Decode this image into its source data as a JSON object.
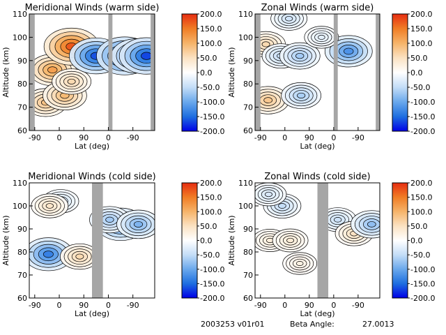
{
  "colors": {
    "scale": [
      "#0000e6",
      "#1e6fe0",
      "#6aa8ec",
      "#c4ddf7",
      "#ffffff",
      "#fbe2c2",
      "#f6b46a",
      "#f07d25",
      "#e62d10"
    ],
    "shade": "#a6a6a6",
    "line": "#000000"
  },
  "footer": {
    "run_id": "2003253 v01r01",
    "beta_label": "Beta Angle:",
    "beta_value": "27.0013"
  },
  "chart_data": [
    {
      "type": "heatmap",
      "title": "Meridional Winds (warm side)",
      "xlabel": "Lat (deg)",
      "ylabel": "Altitude (km)",
      "xticks": [
        "-90",
        "0",
        "90",
        "0",
        "-90"
      ],
      "yticks": [
        60,
        70,
        80,
        90,
        100,
        110
      ],
      "ylim": [
        60,
        110
      ],
      "colorbar": {
        "ticks": [
          "200.0",
          "150.0",
          "100.0",
          "50.0",
          "0.0",
          "-50.0",
          "-100.0",
          "-150.0",
          "-200.0"
        ],
        "range": [
          -200,
          200
        ]
      },
      "shaded_ranges": [
        [
          -110,
          -90
        ],
        [
          180,
          195
        ],
        [
          335,
          350
        ]
      ],
      "cells": [
        {
          "lat": -25,
          "alt": 86,
          "val": 120
        },
        {
          "lat": 45,
          "alt": 96,
          "val": 175
        },
        {
          "lat": -50,
          "alt": 72,
          "val": 85
        },
        {
          "lat": 20,
          "alt": 75,
          "val": 95
        },
        {
          "lat": 45,
          "alt": 81,
          "val": 60
        },
        {
          "lat": 135,
          "alt": 92,
          "val": -165
        },
        {
          "lat": 240,
          "alt": 92,
          "val": -185
        },
        {
          "lat": 285,
          "alt": 92,
          "val": -150
        },
        {
          "lat": 320,
          "alt": 92,
          "val": -170
        }
      ]
    },
    {
      "type": "heatmap",
      "title": "Zonal Winds (warm side)",
      "xlabel": "Lat (deg)",
      "ylabel": "Altitude (km)",
      "xticks": [
        "-90",
        "0",
        "90",
        "0",
        "-90"
      ],
      "yticks": [
        60,
        70,
        80,
        90,
        100,
        110
      ],
      "ylim": [
        60,
        110
      ],
      "colorbar": {
        "ticks": [
          "200.0",
          "150.0",
          "100.0",
          "50.0",
          "0.0",
          "-50.0",
          "-100.0",
          "-150.0",
          "-200.0"
        ],
        "range": [
          -200,
          200
        ]
      },
      "shaded_ranges": [
        [
          -110,
          -90
        ],
        [
          180,
          195
        ],
        [
          335,
          350
        ]
      ],
      "cells": [
        {
          "lat": -70,
          "alt": 97,
          "val": 60
        },
        {
          "lat": -62,
          "alt": 73,
          "val": 80
        },
        {
          "lat": -15,
          "alt": 92,
          "val": -50
        },
        {
          "lat": 55,
          "alt": 92,
          "val": -70
        },
        {
          "lat": 60,
          "alt": 75,
          "val": -65
        },
        {
          "lat": 15,
          "alt": 108,
          "val": -40
        },
        {
          "lat": 235,
          "alt": 94,
          "val": -120
        },
        {
          "lat": 135,
          "alt": 100,
          "val": -25
        }
      ]
    },
    {
      "type": "heatmap",
      "title": "Meridional Winds (cold side)",
      "xlabel": "Lat (deg)",
      "ylabel": "Altitude (km)",
      "xticks": [
        "-90",
        "0",
        "90",
        "0",
        "-90"
      ],
      "yticks": [
        60,
        70,
        80,
        90,
        100,
        110
      ],
      "ylim": [
        60,
        110
      ],
      "colorbar": {
        "ticks": [
          "200.0",
          "150.0",
          "100.0",
          "50.0",
          "0.0",
          "-50.0",
          "-100.0",
          "-150.0",
          "-200.0"
        ],
        "range": [
          -200,
          200
        ]
      },
      "shaded_ranges": [
        [
          120,
          160
        ]
      ],
      "cells": [
        {
          "lat": -40,
          "alt": 79,
          "val": -135
        },
        {
          "lat": 5,
          "alt": 102,
          "val": -40
        },
        {
          "lat": -35,
          "alt": 100,
          "val": 45
        },
        {
          "lat": 75,
          "alt": 78,
          "val": 60
        },
        {
          "lat": 225,
          "alt": 92,
          "val": -130
        },
        {
          "lat": 185,
          "alt": 94,
          "val": -70
        },
        {
          "lat": 290,
          "alt": 92,
          "val": -90
        }
      ]
    },
    {
      "type": "heatmap",
      "title": "Zonal Winds (cold side)",
      "xlabel": "Lat (deg)",
      "ylabel": "Altitude (km)",
      "xticks": [
        "-90",
        "0",
        "90",
        "0",
        "-90"
      ],
      "yticks": [
        60,
        70,
        80,
        90,
        100,
        110
      ],
      "ylim": [
        60,
        110
      ],
      "colorbar": {
        "ticks": [
          "200.0",
          "150.0",
          "100.0",
          "50.0",
          "0.0",
          "-50.0",
          "-100.0",
          "-150.0",
          "-200.0"
        ],
        "range": [
          -200,
          200
        ]
      },
      "shaded_ranges": [
        [
          120,
          160
        ]
      ],
      "cells": [
        {
          "lat": -10,
          "alt": 100,
          "val": -50
        },
        {
          "lat": -55,
          "alt": 85,
          "val": 30
        },
        {
          "lat": 20,
          "alt": 85,
          "val": 35
        },
        {
          "lat": 55,
          "alt": 75,
          "val": 25
        },
        {
          "lat": -60,
          "alt": 105,
          "val": -35
        },
        {
          "lat": 195,
          "alt": 94,
          "val": -45
        },
        {
          "lat": 255,
          "alt": 88,
          "val": 50
        },
        {
          "lat": 320,
          "alt": 92,
          "val": -80
        }
      ]
    }
  ]
}
